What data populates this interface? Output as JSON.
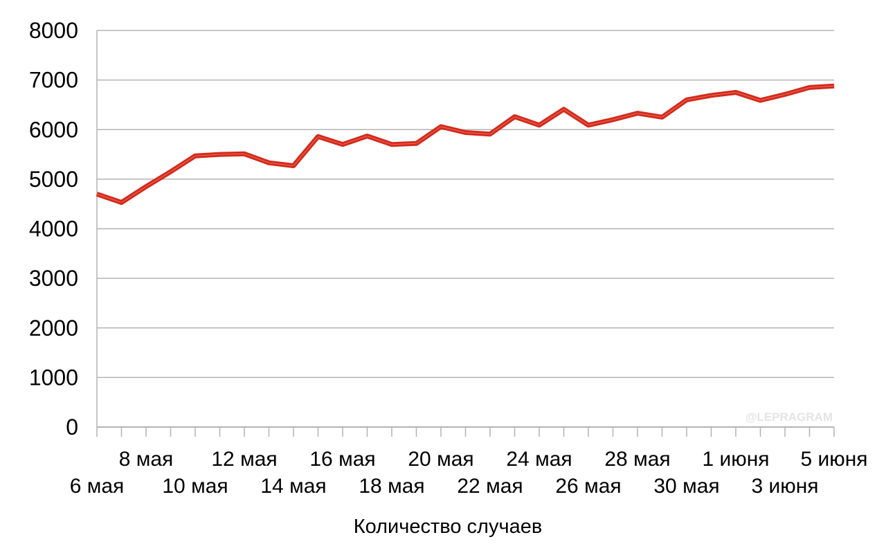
{
  "chart_data": {
    "type": "line",
    "xlabel": "Количество случаев",
    "ylabel": "",
    "title": "",
    "ylim": [
      0,
      8000
    ],
    "yticks": [
      0,
      1000,
      2000,
      3000,
      4000,
      5000,
      6000,
      7000,
      8000
    ],
    "grid": true,
    "legend": "none",
    "line_color": "#d42a1b",
    "x": [
      "6 мая",
      "7 мая",
      "8 мая",
      "9 мая",
      "10 мая",
      "11 мая",
      "12 мая",
      "13 мая",
      "14 мая",
      "15 мая",
      "16 мая",
      "17 мая",
      "18 мая",
      "19 мая",
      "20 мая",
      "21 мая",
      "22 мая",
      "23 мая",
      "24 мая",
      "25 мая",
      "26 мая",
      "27 мая",
      "28 мая",
      "29 мая",
      "30 мая",
      "31 мая",
      "1 июня",
      "2 июня",
      "3 июня",
      "4 июня",
      "5 июня"
    ],
    "xtick_labels": [
      "6 мая",
      "8 мая",
      "10 мая",
      "12 мая",
      "14 мая",
      "16 мая",
      "18 мая",
      "20 мая",
      "22 мая",
      "24 мая",
      "26 мая",
      "28 мая",
      "30 мая",
      "1 июня",
      "3 июня",
      "5 июня"
    ],
    "series": [
      {
        "values": [
          4700,
          4530,
          4850,
          5150,
          5470,
          5500,
          5510,
          5330,
          5270,
          5860,
          5700,
          5870,
          5700,
          5720,
          6060,
          5940,
          5910,
          6260,
          6090,
          6410,
          6090,
          6200,
          6330,
          6250,
          6600,
          6690,
          6750,
          6590,
          6710,
          6850,
          6880
        ]
      }
    ]
  },
  "watermark": "@LEPRAGRAM"
}
